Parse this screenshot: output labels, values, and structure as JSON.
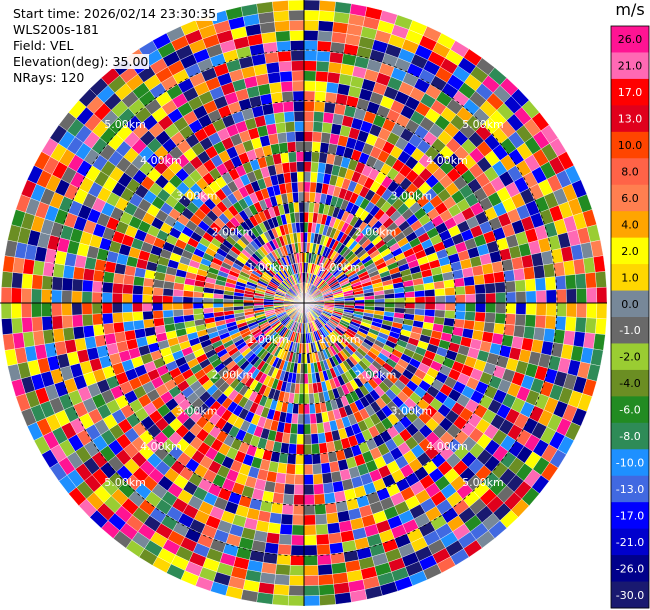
{
  "info": {
    "start_time": "Start time: 2026/02/14 23:30:35",
    "instrument": "WLS200s-181",
    "field": "Field: VEL",
    "elevation": "Elevation(deg): 35.00",
    "nrays": "NRays: 120"
  },
  "chart_data": {
    "type": "heatmap",
    "projection": "polar-ppi",
    "field": "VEL",
    "units": "m/s",
    "n_rays": 120,
    "n_gates": 30,
    "grid": true,
    "range_rings_km": [
      1,
      2,
      3,
      4,
      5
    ],
    "range_ring_labels": [
      "1.00km",
      "2.00km",
      "3.00km",
      "4.00km",
      "5.00km"
    ],
    "range_label_bearings_deg": [
      45,
      135,
      225,
      315
    ],
    "colorbar": {
      "title": "m/s",
      "placement": "right",
      "tick_labels": [
        "26.0",
        "21.0",
        "17.0",
        "13.0",
        "10.0",
        "8.0",
        "6.0",
        "4.0",
        "2.0",
        "1.0",
        "0.0",
        "-1.0",
        "-2.0",
        "-4.0",
        "-6.0",
        "-8.0",
        "-10.0",
        "-13.0",
        "-17.0",
        "-21.0",
        "-26.0",
        "-30.0"
      ],
      "colors": [
        "#ff1493",
        "#ff69b4",
        "#ff0000",
        "#e0001c",
        "#ff4500",
        "#ff6347",
        "#ff7f50",
        "#ffa500",
        "#ffff00",
        "#ffd700",
        "#778899",
        "#696969",
        "#9acd32",
        "#6b8e23",
        "#228b22",
        "#2e8b57",
        "#1e90ff",
        "#4169e1",
        "#0000ff",
        "#0000cd",
        "#00008b",
        "#191970"
      ]
    }
  }
}
